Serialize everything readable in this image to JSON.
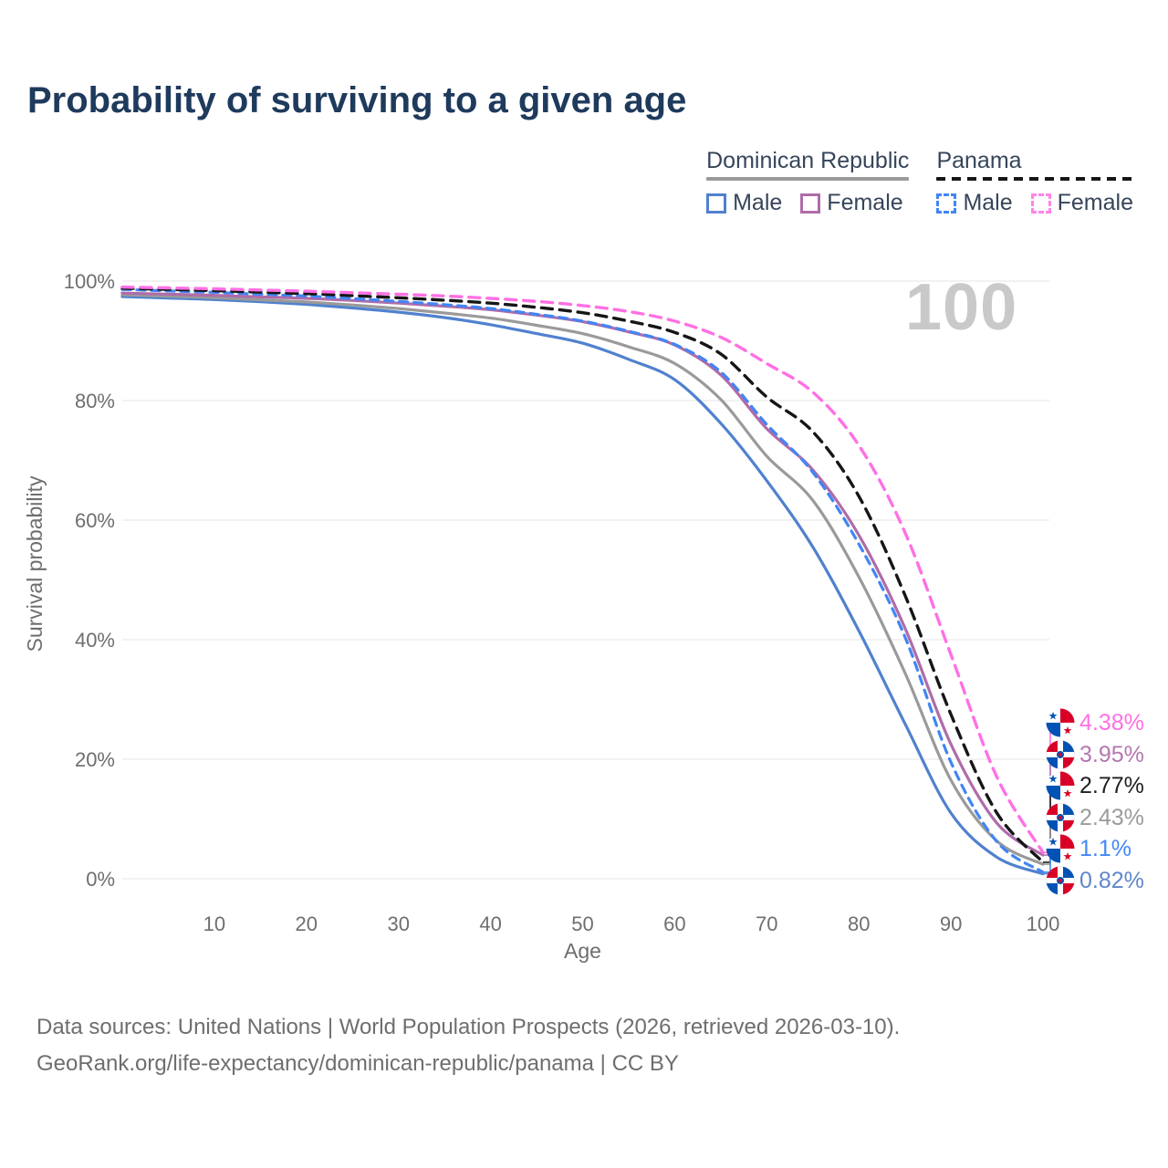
{
  "page": {
    "title": "Probability of surviving to a given age",
    "watermark": "100",
    "footer_line1": "Data sources: United Nations | World Population Prospects (2026, retrieved 2026-03-10).",
    "footer_line2": "GeoRank.org/life-expectancy/dominican-republic/panama | CC BY"
  },
  "legend": {
    "groups": [
      {
        "label": "Dominican Republic",
        "line_style": "solid",
        "line_color": "#9a9a9a",
        "items": [
          {
            "label": "Male",
            "color": "#5081ce",
            "style": "solid"
          },
          {
            "label": "Female",
            "color": "#af6ca9",
            "style": "solid"
          }
        ]
      },
      {
        "label": "Panama",
        "line_style": "dashed",
        "line_color": "#161616",
        "items": [
          {
            "label": "Male",
            "color": "#4285f4",
            "style": "dashed"
          },
          {
            "label": "Female",
            "color": "#ff85e8",
            "style": "dashed"
          }
        ]
      }
    ]
  },
  "chart_data": {
    "type": "line",
    "title": "Probability of surviving to a given age",
    "xlabel": "Age",
    "ylabel": "Survival probability",
    "xlim": [
      0,
      100
    ],
    "ylim": [
      0,
      100
    ],
    "grid": "horizontal",
    "legend_position": "top-right",
    "x_ticks": [
      10,
      20,
      30,
      40,
      50,
      60,
      70,
      80,
      90,
      100
    ],
    "y_ticks": [
      {
        "value": 0,
        "label": "0%"
      },
      {
        "value": 20,
        "label": "20%"
      },
      {
        "value": 40,
        "label": "40%"
      },
      {
        "value": 60,
        "label": "60%"
      },
      {
        "value": 80,
        "label": "80%"
      },
      {
        "value": 100,
        "label": "100%"
      }
    ],
    "x": [
      0,
      5,
      10,
      15,
      20,
      25,
      30,
      35,
      40,
      45,
      50,
      55,
      60,
      65,
      70,
      75,
      80,
      85,
      90,
      95,
      100
    ],
    "series": [
      {
        "name": "Dominican Republic Male",
        "country": "Dominican Republic",
        "sex": "Male",
        "color": "#5081ce",
        "dash": "solid",
        "width": 3.2,
        "end_label": "0.82%",
        "values": [
          97.4,
          97.15,
          96.9,
          96.55,
          96.1,
          95.5,
          94.8,
          93.9,
          92.7,
          91.2,
          89.6,
          86.9,
          83.5,
          76.2,
          66.6,
          55.5,
          41.5,
          26.0,
          11.0,
          3.6,
          0.82
        ]
      },
      {
        "name": "Dominican Republic",
        "country": "Dominican Republic",
        "sex": "Both",
        "color": "#9a9a9a",
        "dash": "solid",
        "width": 3.2,
        "end_label": "2.43%",
        "values": [
          97.7,
          97.45,
          97.2,
          96.85,
          96.5,
          96.0,
          95.4,
          94.65,
          93.8,
          92.6,
          91.2,
          89.0,
          86.2,
          80.2,
          70.7,
          63.3,
          50.5,
          34.5,
          16.5,
          6.3,
          2.43
        ]
      },
      {
        "name": "Dominican Republic Female",
        "country": "Dominican Republic",
        "sex": "Female",
        "color": "#af6ca9",
        "dash": "solid",
        "width": 3.2,
        "end_label": "3.95%",
        "values": [
          98.0,
          97.8,
          97.6,
          97.35,
          97.1,
          96.75,
          96.3,
          95.8,
          95.2,
          94.3,
          93.2,
          91.5,
          89.3,
          84.3,
          75.3,
          68.4,
          57.5,
          42.0,
          22.5,
          9.3,
          3.95
        ]
      },
      {
        "name": "Panama Male",
        "country": "Panama",
        "sex": "Male",
        "color": "#4285f4",
        "dash": "9 7",
        "width": 3.2,
        "end_label": "1.1%",
        "values": [
          98.6,
          98.35,
          98.1,
          97.8,
          97.5,
          97.05,
          96.6,
          96.05,
          95.4,
          94.45,
          93.3,
          91.6,
          89.4,
          84.8,
          76.0,
          68.0,
          56.0,
          40.5,
          19.5,
          6.2,
          1.1
        ]
      },
      {
        "name": "Panama",
        "country": "Panama",
        "sex": "Both",
        "color": "#161616",
        "dash": "12 8",
        "width": 3.4,
        "end_label": "2.77%",
        "values": [
          98.8,
          98.6,
          98.4,
          98.15,
          97.9,
          97.55,
          97.2,
          96.8,
          96.3,
          95.6,
          94.7,
          93.3,
          91.4,
          87.8,
          80.6,
          74.8,
          64.0,
          47.5,
          27.5,
          11.0,
          2.77
        ]
      },
      {
        "name": "Panama Female",
        "country": "Panama",
        "sex": "Female",
        "color": "#ff70e4",
        "dash": "12 8",
        "width": 3.4,
        "end_label": "4.38%",
        "values": [
          99.0,
          98.85,
          98.7,
          98.5,
          98.3,
          98.05,
          97.8,
          97.5,
          97.1,
          96.6,
          95.9,
          94.9,
          93.3,
          90.6,
          86.2,
          81.4,
          72.5,
          58.0,
          37.5,
          17.0,
          4.38
        ]
      }
    ]
  },
  "end_labels": [
    {
      "value": "4.38%",
      "color": "#ff6fe3",
      "flag": "panama",
      "series": "Panama Female"
    },
    {
      "value": "3.95%",
      "color": "#b577b0",
      "flag": "dominican-republic",
      "series": "Dominican Republic Female"
    },
    {
      "value": "2.77%",
      "color": "#1f1f1f",
      "flag": "panama",
      "series": "Panama"
    },
    {
      "value": "2.43%",
      "color": "#9b9b9b",
      "flag": "dominican-republic",
      "series": "Dominican Republic"
    },
    {
      "value": "1.1%",
      "color": "#4287f5",
      "flag": "panama",
      "series": "Panama Male"
    },
    {
      "value": "0.82%",
      "color": "#5f87c9",
      "flag": "dominican-republic",
      "series": "Dominican Republic Male"
    }
  ]
}
